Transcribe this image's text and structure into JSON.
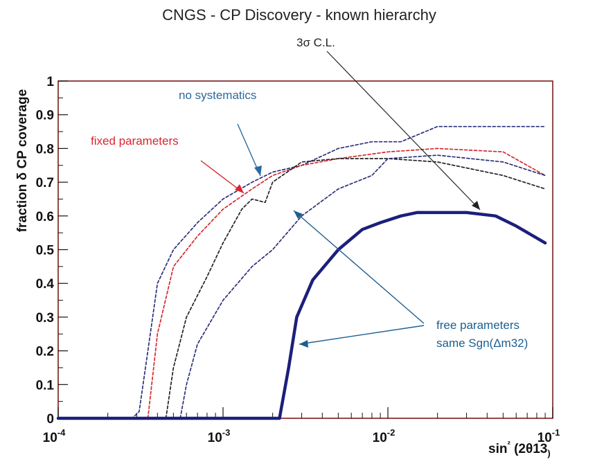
{
  "chart_data": {
    "type": "line",
    "title": "CNGS - CP Discovery - known hierarchy",
    "xlabel": "sin² (2θ13)",
    "ylabel": "fraction δ CP coverage",
    "xscale": "log",
    "xlim": [
      0.0001,
      0.1
    ],
    "ylim": [
      0,
      1
    ],
    "x_ticks": [
      {
        "value": 0.0001,
        "base": "10",
        "exp": "-4"
      },
      {
        "value": 0.001,
        "base": "10",
        "exp": "-3"
      },
      {
        "value": 0.01,
        "base": "10",
        "exp": "-2"
      },
      {
        "value": 0.1,
        "base": "10",
        "exp": "-1"
      }
    ],
    "y_ticks": [
      "0",
      "0.1",
      "0.2",
      "0.3",
      "0.4",
      "0.5",
      "0.6",
      "0.7",
      "0.8",
      "0.9",
      "1"
    ],
    "series": [
      {
        "name": "no systematics (dashed navy)",
        "color": "#2b2f7a",
        "style": "dashed",
        "x": [
          0.0001,
          0.00028,
          0.00031,
          0.00035,
          0.0004,
          0.0005,
          0.0007,
          0.001,
          0.0015,
          0.002,
          0.003,
          0.005,
          0.008,
          0.012,
          0.02,
          0.04,
          0.09
        ],
        "y": [
          0,
          0,
          0.02,
          0.2,
          0.4,
          0.5,
          0.58,
          0.65,
          0.7,
          0.73,
          0.75,
          0.8,
          0.82,
          0.82,
          0.865,
          0.865,
          0.865
        ]
      },
      {
        "name": "fixed parameters (dashed red)",
        "color": "#d8262e",
        "style": "dashed",
        "x": [
          0.00035,
          0.0004,
          0.0005,
          0.0007,
          0.001,
          0.0015,
          0.002,
          0.003,
          0.005,
          0.01,
          0.02,
          0.05,
          0.09
        ],
        "y": [
          0,
          0.25,
          0.45,
          0.54,
          0.62,
          0.68,
          0.72,
          0.75,
          0.77,
          0.79,
          0.8,
          0.79,
          0.72
        ]
      },
      {
        "name": "free parameters (dashed black)",
        "color": "#222222",
        "style": "dashed",
        "x": [
          0.00045,
          0.0005,
          0.0006,
          0.0008,
          0.001,
          0.0013,
          0.0015,
          0.0018,
          0.002,
          0.003,
          0.005,
          0.01,
          0.02,
          0.05,
          0.09
        ],
        "y": [
          0,
          0.15,
          0.3,
          0.42,
          0.52,
          0.62,
          0.65,
          0.64,
          0.7,
          0.76,
          0.77,
          0.77,
          0.76,
          0.72,
          0.68
        ]
      },
      {
        "name": "free parameters same Sgn (dashed navy)",
        "color": "#2b2f7a",
        "style": "dashed",
        "x": [
          0.00055,
          0.0006,
          0.0007,
          0.001,
          0.0015,
          0.002,
          0.003,
          0.005,
          0.008,
          0.01,
          0.02,
          0.05,
          0.09
        ],
        "y": [
          0,
          0.1,
          0.22,
          0.35,
          0.45,
          0.5,
          0.6,
          0.68,
          0.72,
          0.77,
          0.78,
          0.76,
          0.72
        ]
      },
      {
        "name": "3σ C.L. (solid navy)",
        "color": "#1c1f7a",
        "style": "solid",
        "x": [
          0.0001,
          0.0018,
          0.0022,
          0.0025,
          0.0028,
          0.0035,
          0.005,
          0.007,
          0.009,
          0.012,
          0.015,
          0.02,
          0.03,
          0.045,
          0.06,
          0.09
        ],
        "y": [
          0,
          0,
          0,
          0.15,
          0.3,
          0.41,
          0.5,
          0.56,
          0.58,
          0.6,
          0.61,
          0.61,
          0.61,
          0.6,
          0.57,
          0.52
        ]
      }
    ],
    "annotations": [
      {
        "text": "no systematics",
        "color": "#2a6a9e"
      },
      {
        "text": "fixed parameters",
        "color": "#d8262e"
      },
      {
        "text": "3σ C.L.",
        "color": "#222222"
      },
      {
        "text": "free parameters",
        "color": "#1c5e8f"
      },
      {
        "text": "same Sgn(Δm32)",
        "color": "#1c5e8f"
      }
    ]
  }
}
